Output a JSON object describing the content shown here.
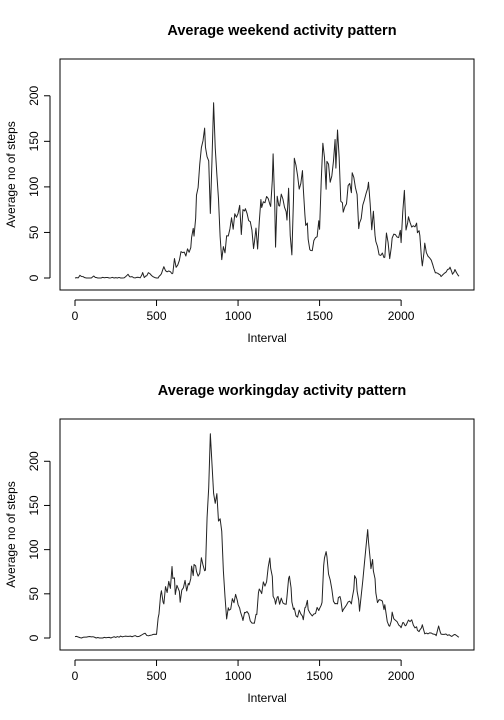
{
  "chart_data": [
    {
      "type": "line",
      "title": "Average weekend activity pattern",
      "xlabel": "Interval",
      "ylabel": "Average no of steps",
      "xlim": [
        0,
        2355
      ],
      "ylim": [
        0,
        225
      ],
      "xticks": [
        0,
        500,
        1000,
        1500,
        2000
      ],
      "yticks": [
        0,
        50,
        100,
        150,
        200
      ],
      "grid": false,
      "legend": "none",
      "series": [
        {
          "color": "#222222",
          "x": [
            0,
            20,
            30,
            60,
            100,
            115,
            130,
            200,
            300,
            325,
            340,
            400,
            415,
            425,
            440,
            450,
            470,
            500,
            515,
            530,
            545,
            555,
            600,
            610,
            620,
            630,
            640,
            650,
            700,
            715,
            730,
            745,
            800,
            810,
            820,
            830,
            840,
            850,
            900,
            910,
            920,
            930,
            940,
            1000,
            1010,
            1020,
            1030,
            1045,
            1100,
            1110,
            1120,
            1130,
            1145,
            1200,
            1210,
            1215,
            1230,
            1240,
            1255,
            1300,
            1310,
            1320,
            1330,
            1345,
            1400,
            1415,
            1430,
            1445,
            1500,
            1510,
            1520,
            1530,
            1545,
            1600,
            1610,
            1620,
            1630,
            1645,
            1700,
            1710,
            1720,
            1730,
            1745,
            1800,
            1810,
            1820,
            1830,
            1845,
            1900,
            1910,
            1920,
            1930,
            1945,
            2000,
            2010,
            2020,
            2030,
            2045,
            2100,
            2115,
            2130,
            2145,
            2200,
            2215,
            2230,
            2245,
            2300,
            2315,
            2330,
            2355
          ],
          "y": [
            0,
            0,
            3,
            0,
            0,
            2,
            0,
            0,
            0,
            4,
            1,
            0,
            6,
            0,
            3,
            6,
            2,
            0,
            1,
            5,
            12,
            8,
            5,
            25,
            10,
            14,
            20,
            28,
            30,
            40,
            50,
            90,
            165,
            135,
            125,
            80,
            140,
            167,
            18,
            35,
            30,
            45,
            55,
            65,
            94,
            45,
            65,
            75,
            35,
            48,
            34,
            70,
            75,
            88,
            125,
            142,
            35,
            97,
            95,
            75,
            115,
            40,
            30,
            130,
            100,
            65,
            45,
            30,
            60,
            105,
            130,
            115,
            110,
            140,
            145,
            115,
            90,
            80,
            105,
            110,
            95,
            85,
            55,
            95,
            80,
            55,
            70,
            35,
            20,
            58,
            45,
            25,
            48,
            45,
            65,
            88,
            45,
            60,
            55,
            48,
            12,
            35,
            10,
            5,
            5,
            2,
            12,
            5,
            8,
            2
          ],
          "step": 10
        }
      ]
    },
    {
      "type": "line",
      "title": "Average workingday activity pattern",
      "xlabel": "Interval",
      "ylabel": "Average no of steps",
      "xlim": [
        0,
        2355
      ],
      "ylim": [
        0,
        232
      ],
      "xticks": [
        0,
        500,
        1000,
        1500,
        2000
      ],
      "yticks": [
        0,
        50,
        100,
        150,
        200
      ],
      "grid": false,
      "legend": "none",
      "series": [
        {
          "color": "#222222",
          "x": [
            0,
            20,
            40,
            100,
            130,
            200,
            300,
            400,
            430,
            450,
            500,
            515,
            530,
            545,
            555,
            600,
            615,
            630,
            645,
            700,
            715,
            730,
            745,
            800,
            810,
            820,
            830,
            840,
            850,
            900,
            910,
            920,
            930,
            945,
            1000,
            1015,
            1030,
            1045,
            1100,
            1115,
            1130,
            1145,
            1200,
            1215,
            1230,
            1245,
            1300,
            1315,
            1330,
            1345,
            1400,
            1415,
            1430,
            1445,
            1500,
            1515,
            1530,
            1545,
            1600,
            1615,
            1630,
            1645,
            1700,
            1715,
            1730,
            1745,
            1800,
            1815,
            1830,
            1845,
            1900,
            1915,
            1930,
            1945,
            2000,
            2015,
            2030,
            2045,
            2100,
            2115,
            2130,
            2145,
            2200,
            2215,
            2230,
            2245,
            2300,
            2315,
            2330,
            2355
          ],
          "y": [
            2,
            1,
            0,
            2,
            0,
            0,
            2,
            2,
            5,
            2,
            5,
            30,
            55,
            45,
            50,
            75,
            55,
            60,
            45,
            65,
            75,
            80,
            70,
            85,
            120,
            200,
            230,
            180,
            170,
            105,
            90,
            40,
            20,
            35,
            45,
            28,
            20,
            30,
            15,
            30,
            55,
            50,
            85,
            50,
            35,
            45,
            40,
            70,
            45,
            30,
            25,
            40,
            35,
            28,
            35,
            42,
            95,
            80,
            35,
            50,
            40,
            30,
            40,
            80,
            60,
            35,
            115,
            95,
            90,
            45,
            35,
            20,
            15,
            25,
            10,
            20,
            15,
            22,
            10,
            8,
            15,
            5,
            5,
            3,
            12,
            5,
            3,
            2,
            4,
            1
          ],
          "step": 10
        }
      ]
    }
  ]
}
